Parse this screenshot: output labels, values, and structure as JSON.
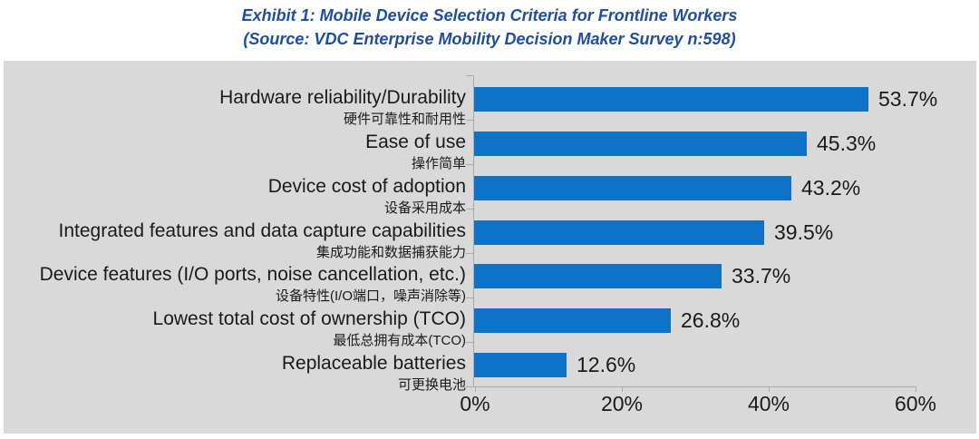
{
  "header": {
    "title_line1": "Exhibit 1: Mobile Device Selection Criteria for Frontline Workers",
    "title_line2": "(Source: VDC Enterprise Mobility Decision Maker Survey n:598)"
  },
  "colors": {
    "title_blue": "#1f4e9d",
    "bar_blue": "#0e73c6",
    "plot_background": "#d9d9d9",
    "axis_line": "#ababab",
    "text": "#1a1a1a"
  },
  "chart_data": {
    "type": "bar",
    "orientation": "horizontal",
    "title": "Exhibit 1: Mobile Device Selection Criteria for Frontline Workers",
    "subtitle": "(Source: VDC Enterprise Mobility Decision Maker Survey n:598)",
    "categories": [
      {
        "en": "Hardware reliability/Durability",
        "zh": "硬件可靠性和耐用性"
      },
      {
        "en": "Ease of use",
        "zh": "操作简单"
      },
      {
        "en": "Device cost of adoption",
        "zh": "设备采用成本"
      },
      {
        "en": "Integrated features and data capture capabilities",
        "zh": "集成功能和数据捕获能力"
      },
      {
        "en": "Device features (I/O ports, noise cancellation, etc.)",
        "zh": "设备特性(I/O端口，噪声消除等)"
      },
      {
        "en": "Lowest total cost of ownership (TCO)",
        "zh": "最低总拥有成本(TCO)"
      },
      {
        "en": "Replaceable batteries",
        "zh": "可更换电池"
      }
    ],
    "values": [
      53.7,
      45.3,
      43.2,
      39.5,
      33.7,
      26.8,
      12.6
    ],
    "value_labels": [
      "53.7%",
      "45.3%",
      "43.2%",
      "39.5%",
      "33.7%",
      "26.8%",
      "12.6%"
    ],
    "xlabel": "",
    "ylabel": "",
    "x_axis": {
      "min": 0,
      "max": 60,
      "tick_labels": [
        "0%",
        "20%",
        "40%",
        "60%"
      ],
      "tick_values": [
        0,
        20,
        40,
        60
      ]
    },
    "legend": "none",
    "grid": false
  }
}
